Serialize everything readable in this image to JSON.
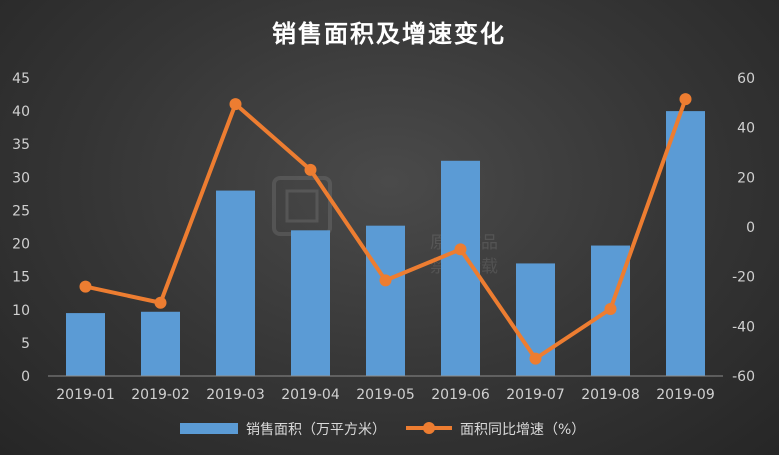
{
  "chart_data": {
    "type": "bar",
    "title": "销售面积及增速变化",
    "categories": [
      "2019-01",
      "2019-02",
      "2019-03",
      "2019-04",
      "2019-05",
      "2019-06",
      "2019-07",
      "2019-08",
      "2019-09"
    ],
    "series": [
      {
        "name": "销售面积（万平方米）",
        "type": "bar",
        "axis": "left",
        "color": "#5b9bd5",
        "values": [
          9.5,
          9.7,
          28.0,
          22.0,
          22.7,
          32.5,
          17.0,
          19.7,
          40.0
        ]
      },
      {
        "name": "面积同比增速（%）",
        "type": "line",
        "axis": "right",
        "color": "#ed7d31",
        "values": [
          -24,
          -30.5,
          49.5,
          23,
          -21.5,
          -9,
          -53,
          -33,
          51.5
        ]
      }
    ],
    "y_left": {
      "min": 0,
      "max": 45,
      "step": 5
    },
    "y_right": {
      "min": -60,
      "max": 60,
      "step": 20
    },
    "grid": false,
    "legend_position": "bottom"
  },
  "watermark": {
    "line1": "原创作品",
    "line2": "禁止转载"
  }
}
